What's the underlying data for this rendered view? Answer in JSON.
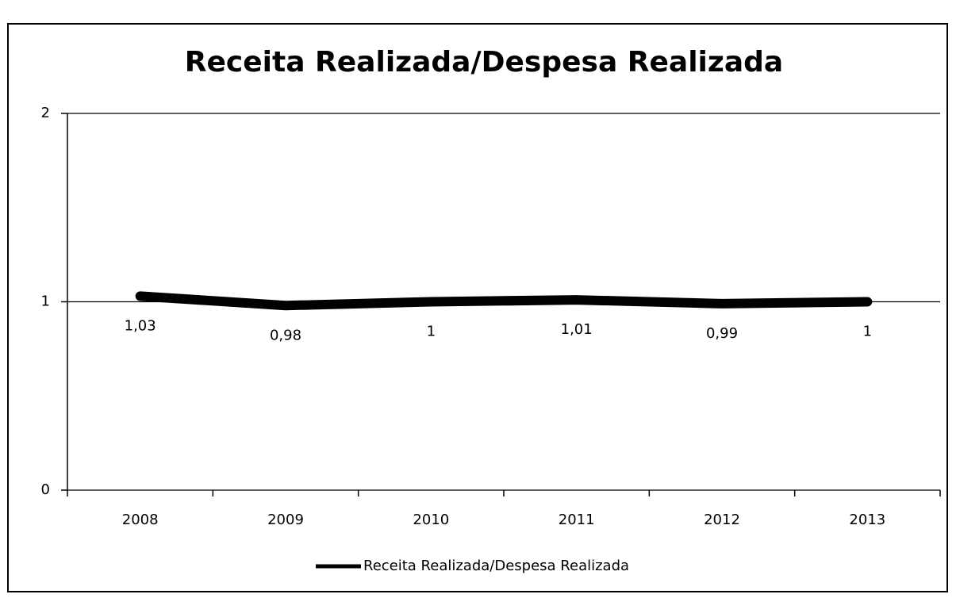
{
  "chart_data": {
    "type": "line",
    "title": "Receita Realizada/Despesa Realizada",
    "categories": [
      "2008",
      "2009",
      "2010",
      "2011",
      "2012",
      "2013"
    ],
    "series": [
      {
        "name": "Receita Realizada/Despesa Realizada",
        "color": "#000000",
        "values": [
          1.03,
          0.98,
          1,
          1.01,
          0.99,
          1
        ],
        "value_labels": [
          "1,03",
          "0,98",
          "1",
          "1,01",
          "0,99",
          "1"
        ]
      }
    ],
    "ylim": [
      0,
      2
    ],
    "yticks": [
      0,
      1,
      2
    ],
    "grid": true,
    "legend": "bottom"
  }
}
